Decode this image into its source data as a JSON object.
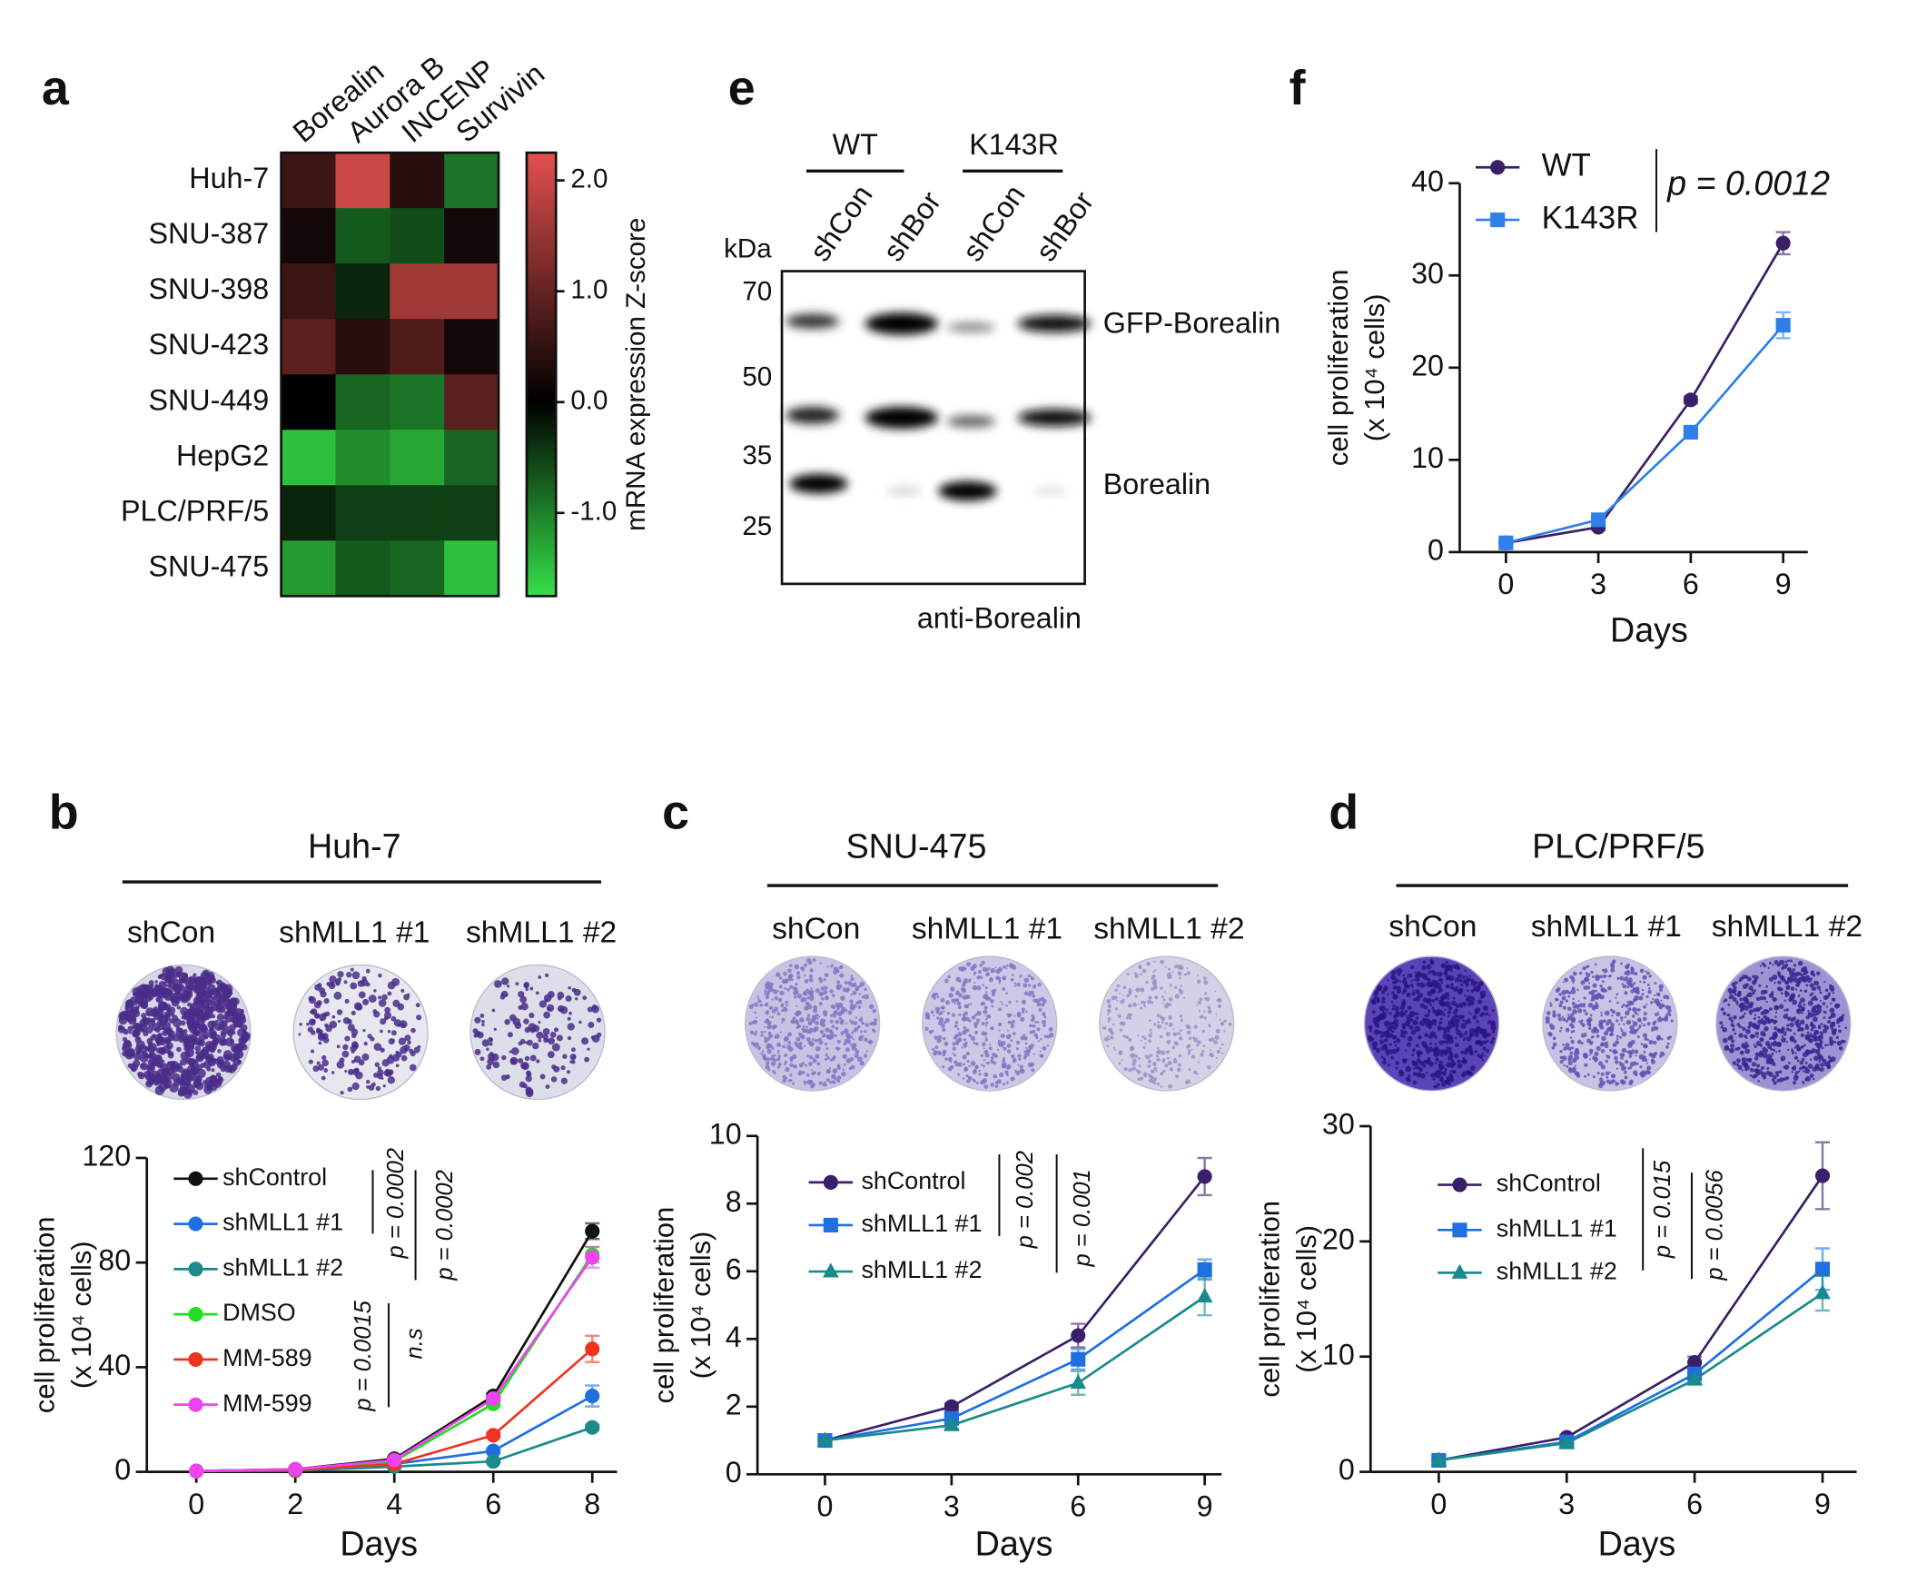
{
  "chart_data": [
    {
      "panel": "a",
      "type": "heatmap",
      "rows": [
        "Huh-7",
        "SNU-387",
        "SNU-398",
        "SNU-423",
        "SNU-449",
        "HepG2",
        "PLC/PRF/5",
        "SNU-475"
      ],
      "columns": [
        "Borealin",
        "Aurora B",
        "INCENP",
        "Survivin"
      ],
      "values": [
        [
          0.6,
          2.0,
          0.4,
          -0.9
        ],
        [
          0.2,
          -0.7,
          -0.6,
          0.2
        ],
        [
          0.6,
          -0.3,
          1.6,
          1.6
        ],
        [
          0.9,
          0.4,
          0.8,
          0.2
        ],
        [
          0.0,
          -0.8,
          -0.9,
          0.9
        ],
        [
          -1.5,
          -1.1,
          -1.3,
          -0.8
        ],
        [
          -0.3,
          -0.5,
          -0.5,
          -0.5
        ],
        [
          -1.2,
          -0.7,
          -0.8,
          -1.5
        ]
      ],
      "zlim": [
        -1.75,
        2.25
      ],
      "zticks": [
        {
          "value": 2,
          "label": "2.0"
        },
        {
          "value": 1,
          "label": "1.0"
        },
        {
          "value": 0,
          "label": "0.0"
        },
        {
          "value": -1,
          "label": "-1.0"
        }
      ],
      "colorbar_label": "mRNA expression Z-score",
      "colors": {
        "low": "#35e048",
        "mid": "#000000",
        "high": "#e2504d"
      }
    },
    {
      "panel": "f",
      "type": "line",
      "x": [
        0,
        3,
        6,
        9
      ],
      "xlim": [
        -1.5,
        9.8
      ],
      "xticks": [
        0,
        3,
        6,
        9
      ],
      "ylim": [
        0,
        40
      ],
      "yticks": [
        0,
        10,
        20,
        30,
        40
      ],
      "xlabel": "Days",
      "ylabel": [
        "cell proliferation",
        "(x 10⁴ cells)"
      ],
      "series": [
        {
          "name": "WT",
          "color": "#3a2068",
          "marker": "circle",
          "values": [
            1,
            2.7,
            16.5,
            33.5
          ],
          "errors": [
            0.2,
            0.3,
            0.4,
            1.2
          ]
        },
        {
          "name": "K143R",
          "color": "#2f7fe8",
          "marker": "square",
          "values": [
            1,
            3.5,
            13,
            24.6
          ],
          "errors": [
            0.2,
            0.3,
            0.4,
            1.4
          ]
        }
      ],
      "annotations": [
        "p = 0.0012"
      ]
    },
    {
      "panel": "b",
      "type": "line",
      "title": "Huh-7",
      "plate_labels": [
        "shCon",
        "shMLL1 #1",
        "shMLL1 #2"
      ],
      "x": [
        0,
        2,
        4,
        6,
        8
      ],
      "xlim": [
        -1,
        8.5
      ],
      "xticks": [
        0,
        2,
        4,
        6,
        8
      ],
      "ylim": [
        0,
        120
      ],
      "yticks": [
        0,
        40,
        80,
        120
      ],
      "xlabel": "Days",
      "ylabel": [
        "cell proliferation",
        "(x 10⁴ cells)"
      ],
      "series": [
        {
          "name": "shControl",
          "color": "#111111",
          "marker": "circle",
          "values": [
            0.3,
            1,
            5,
            29,
            92
          ],
          "errors": [
            0.1,
            0.2,
            0.5,
            1,
            3
          ]
        },
        {
          "name": "shMLL1 #1",
          "color": "#1f6fe0",
          "marker": "circle",
          "values": [
            0.3,
            0.5,
            3,
            8,
            29
          ],
          "errors": [
            0.1,
            0.1,
            0.3,
            1,
            4
          ]
        },
        {
          "name": "shMLL1 #2",
          "color": "#1a8a8a",
          "marker": "circle",
          "values": [
            0.3,
            0.4,
            2,
            4,
            17
          ],
          "errors": [
            0.1,
            0.1,
            0.3,
            0.5,
            1
          ]
        },
        {
          "name": "DMSO",
          "color": "#22dd22",
          "marker": "circle",
          "values": [
            0.3,
            1,
            4,
            26,
            83
          ],
          "errors": [
            0.1,
            0.2,
            0.4,
            1,
            3
          ]
        },
        {
          "name": "MM-589",
          "color": "#ee3322",
          "marker": "circle",
          "values": [
            0.3,
            0.7,
            3,
            14,
            47
          ],
          "errors": [
            0.1,
            0.1,
            0.3,
            1,
            5
          ]
        },
        {
          "name": "MM-599",
          "color": "#ee44ee",
          "marker": "circle",
          "values": [
            0.3,
            1,
            4.5,
            28,
            82
          ],
          "errors": [
            0.1,
            0.2,
            0.4,
            1,
            4
          ]
        }
      ],
      "annotations": [
        "p = 0.0002",
        "p = 0.0002",
        "p = 0.0015",
        "n.s"
      ]
    },
    {
      "panel": "c",
      "type": "line",
      "title": "SNU-475",
      "plate_labels": [
        "shCon",
        "shMLL1 #1",
        "shMLL1 #2"
      ],
      "x": [
        0,
        3,
        6,
        9
      ],
      "xlim": [
        -1.6,
        9.4
      ],
      "xticks": [
        0,
        3,
        6,
        9
      ],
      "ylim": [
        0,
        10
      ],
      "yticks": [
        0,
        2,
        4,
        6,
        8,
        10
      ],
      "xlabel": "Days",
      "ylabel": [
        "cell proliferation",
        "(x 10⁴ cells)"
      ],
      "series": [
        {
          "name": "shControl",
          "color": "#3a2068",
          "marker": "circle",
          "values": [
            1,
            2,
            4.1,
            8.8
          ],
          "errors": [
            0.05,
            0.1,
            0.35,
            0.55
          ]
        },
        {
          "name": "shMLL1 #1",
          "color": "#1f6fe0",
          "marker": "square",
          "values": [
            1,
            1.65,
            3.4,
            6.05
          ],
          "errors": [
            0.05,
            0.1,
            0.3,
            0.3
          ]
        },
        {
          "name": "shMLL1 #2",
          "color": "#1a8a8a",
          "marker": "triangle",
          "values": [
            1,
            1.45,
            2.7,
            5.25
          ],
          "errors": [
            0.05,
            0.1,
            0.35,
            0.55
          ]
        }
      ],
      "annotations": [
        "p = 0.002",
        "p = 0.001"
      ]
    },
    {
      "panel": "d",
      "type": "line",
      "title": "PLC/PRF/5",
      "plate_labels": [
        "shCon",
        "shMLL1 #1",
        "shMLL1 #2"
      ],
      "x": [
        0,
        3,
        6,
        9
      ],
      "xlim": [
        -1.6,
        9.8
      ],
      "xticks": [
        0,
        3,
        6,
        9
      ],
      "ylim": [
        0,
        30
      ],
      "yticks": [
        0,
        10,
        20,
        30
      ],
      "xlabel": "Days",
      "ylabel": [
        "cell proliferation",
        "(x 10⁴ cells)"
      ],
      "series": [
        {
          "name": "shControl",
          "color": "#3a2068",
          "marker": "circle",
          "values": [
            1,
            3,
            9.5,
            25.7
          ],
          "errors": [
            0.1,
            0.2,
            0.5,
            2.9
          ]
        },
        {
          "name": "shMLL1 #1",
          "color": "#1f6fe0",
          "marker": "square",
          "values": [
            1,
            2.6,
            8.5,
            17.6
          ],
          "errors": [
            0.1,
            0.2,
            0.5,
            1.8
          ]
        },
        {
          "name": "shMLL1 #2",
          "color": "#1a8a8a",
          "marker": "triangle",
          "values": [
            1,
            2.5,
            8,
            15.5
          ],
          "errors": [
            0.1,
            0.2,
            0.3,
            1.5
          ]
        }
      ],
      "annotations": [
        "p = 0.015",
        "p = 0.0056"
      ]
    }
  ],
  "blot": {
    "panel": "e",
    "groups": [
      "WT",
      "K143R"
    ],
    "lanes": [
      "shCon",
      "shBor",
      "shCon",
      "shBor"
    ],
    "unit": "kDa",
    "markers": [
      70,
      50,
      35,
      25
    ],
    "bands": [
      "GFP-Borealin",
      "Borealin"
    ],
    "antibody": "anti-Borealin"
  }
}
